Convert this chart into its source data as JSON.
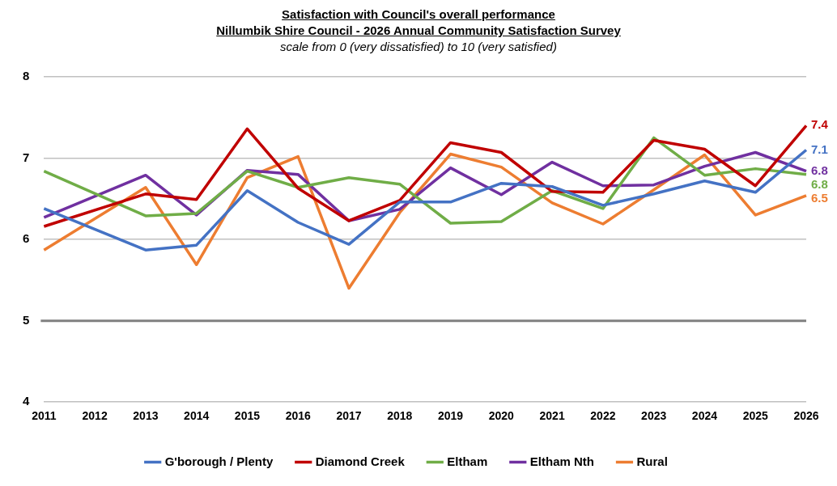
{
  "chart_data": {
    "type": "line",
    "title": "Satisfaction with Council's overall performance\nNillumbik Shire Council - 2026 Annual Community Satisfaction Survey",
    "subtitle": "scale from 0 (very dissatisfied) to 10 (very satisfied)",
    "categories": [
      "2011",
      "2012",
      "2013",
      "2014",
      "2015",
      "2016",
      "2017",
      "2018",
      "2019",
      "2020",
      "2021",
      "2022",
      "2023",
      "2024",
      "2025",
      "2026"
    ],
    "series": [
      {
        "name": "G'borough / Plenty",
        "color": "#4472c4",
        "values": [
          6.38,
          null,
          5.87,
          5.93,
          6.6,
          6.21,
          5.94,
          6.46,
          6.46,
          6.69,
          6.65,
          6.42,
          6.56,
          6.72,
          6.58,
          7.1
        ],
        "value_labels": [
          null,
          null,
          null,
          null,
          null,
          null,
          null,
          null,
          null,
          null,
          null,
          null,
          null,
          null,
          null,
          "7.1"
        ]
      },
      {
        "name": "Diamond Creek",
        "color": "#c00000",
        "values": [
          6.16,
          null,
          6.56,
          6.49,
          7.36,
          6.63,
          6.23,
          6.48,
          7.19,
          7.07,
          6.59,
          6.58,
          7.22,
          7.11,
          6.66,
          7.4
        ],
        "value_labels": [
          null,
          null,
          null,
          null,
          null,
          null,
          null,
          null,
          null,
          null,
          null,
          null,
          null,
          null,
          null,
          "7.4"
        ]
      },
      {
        "name": "Eltham",
        "color": "#70ad47",
        "values": [
          6.84,
          null,
          6.29,
          6.32,
          6.84,
          6.64,
          6.76,
          6.68,
          6.2,
          6.22,
          6.6,
          6.38,
          7.25,
          6.79,
          6.87,
          6.8
        ],
        "value_labels": [
          null,
          null,
          null,
          null,
          null,
          null,
          null,
          null,
          null,
          null,
          null,
          null,
          null,
          null,
          null,
          "6.8"
        ]
      },
      {
        "name": "Eltham Nth",
        "color": "#7030a0",
        "values": [
          6.27,
          null,
          6.79,
          6.3,
          6.85,
          6.8,
          6.23,
          6.37,
          6.88,
          6.55,
          6.95,
          6.66,
          6.67,
          6.9,
          7.07,
          6.84
        ],
        "value_labels": [
          null,
          null,
          null,
          null,
          null,
          null,
          null,
          null,
          null,
          null,
          null,
          null,
          null,
          null,
          null,
          "6.8"
        ]
      },
      {
        "name": "Rural",
        "color": "#ed7d31",
        "values": [
          5.87,
          null,
          6.64,
          5.69,
          6.76,
          7.02,
          5.4,
          6.33,
          7.05,
          6.89,
          6.45,
          6.19,
          6.61,
          7.04,
          6.3,
          6.54
        ],
        "value_labels": [
          null,
          null,
          null,
          null,
          null,
          null,
          null,
          null,
          null,
          null,
          null,
          null,
          null,
          null,
          null,
          "6.5"
        ]
      }
    ],
    "ylim": [
      4,
      8
    ],
    "yticks": [
      4,
      5,
      6,
      7,
      8
    ],
    "grid": "y",
    "legend": "bottom",
    "marker": "none",
    "line_style": "solid",
    "ref_lines": [
      {
        "axis": "y",
        "value": 5,
        "color": "#808080"
      }
    ]
  }
}
